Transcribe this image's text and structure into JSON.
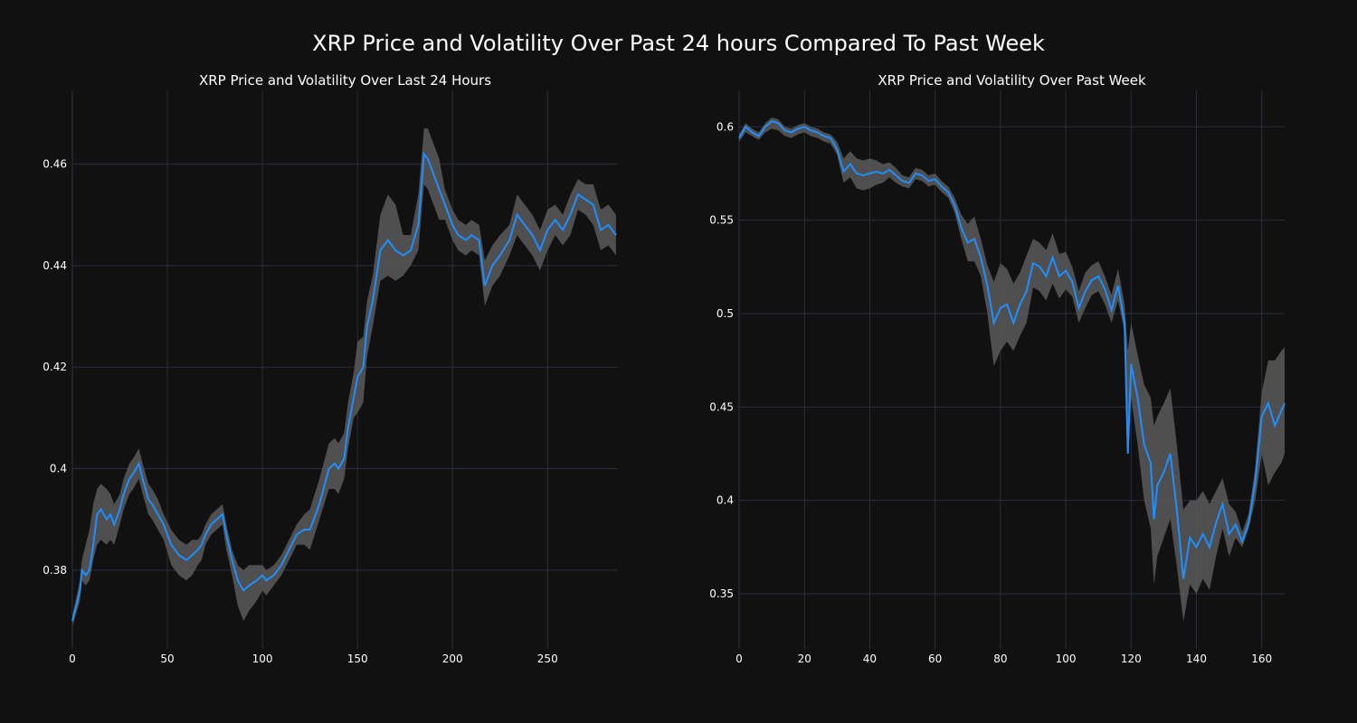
{
  "suptitle": "XRP Price and Volatility Over Past 24 hours Compared To Past Week",
  "colors": {
    "background": "#111111",
    "line": "#1f8fff",
    "band": "#5a5a5a",
    "grid": "#2a2f3d"
  },
  "chart_data": [
    {
      "type": "line",
      "title": "XRP Price and Volatility Over Last 24 Hours",
      "xlim": [
        0,
        287
      ],
      "ylim": [
        0.3645,
        0.4745
      ],
      "xticks": [
        0,
        50,
        100,
        150,
        200,
        250
      ],
      "yticks": [
        0.38,
        0.4,
        0.42,
        0.44,
        0.46
      ],
      "ytick_labels": [
        "0.38",
        "0.4",
        "0.42",
        "0.44",
        "0.46"
      ],
      "grid": true,
      "series": [
        {
          "x": [
            0,
            4,
            5,
            7,
            9,
            11,
            13,
            15,
            18,
            20,
            22,
            25,
            27,
            30,
            32,
            35,
            37,
            40,
            42,
            45,
            48,
            52,
            56,
            60,
            63,
            66,
            68,
            70,
            73,
            76,
            79,
            81,
            84,
            87,
            90,
            93,
            97,
            100,
            102,
            106,
            110,
            114,
            118,
            122,
            125,
            130,
            135,
            138,
            140,
            143,
            145,
            148,
            150,
            153,
            155,
            158,
            162,
            166,
            170,
            174,
            178,
            182,
            185,
            187,
            190,
            193,
            196,
            200,
            203,
            207,
            210,
            214,
            217,
            221,
            225,
            230,
            234,
            238,
            242,
            246,
            250,
            254,
            258,
            262,
            266,
            270,
            274,
            278,
            282,
            286
          ],
          "y": [
            0.37,
            0.376,
            0.38,
            0.379,
            0.38,
            0.385,
            0.391,
            0.392,
            0.39,
            0.391,
            0.389,
            0.392,
            0.395,
            0.398,
            0.399,
            0.401,
            0.398,
            0.394,
            0.393,
            0.391,
            0.389,
            0.385,
            0.383,
            0.382,
            0.383,
            0.384,
            0.385,
            0.387,
            0.389,
            0.39,
            0.391,
            0.387,
            0.382,
            0.378,
            0.376,
            0.377,
            0.378,
            0.379,
            0.378,
            0.379,
            0.381,
            0.384,
            0.387,
            0.388,
            0.388,
            0.393,
            0.4,
            0.401,
            0.4,
            0.402,
            0.408,
            0.414,
            0.418,
            0.42,
            0.428,
            0.433,
            0.443,
            0.445,
            0.443,
            0.442,
            0.443,
            0.448,
            0.462,
            0.461,
            0.458,
            0.455,
            0.452,
            0.448,
            0.446,
            0.445,
            0.446,
            0.445,
            0.436,
            0.44,
            0.442,
            0.445,
            0.45,
            0.448,
            0.446,
            0.443,
            0.447,
            0.449,
            0.447,
            0.45,
            0.454,
            0.453,
            0.452,
            0.447,
            0.448,
            0.446
          ],
          "upper": [
            0.371,
            0.378,
            0.382,
            0.385,
            0.388,
            0.393,
            0.396,
            0.397,
            0.396,
            0.395,
            0.393,
            0.395,
            0.398,
            0.401,
            0.402,
            0.404,
            0.401,
            0.397,
            0.396,
            0.394,
            0.391,
            0.388,
            0.386,
            0.385,
            0.386,
            0.386,
            0.387,
            0.389,
            0.391,
            0.392,
            0.393,
            0.389,
            0.384,
            0.381,
            0.38,
            0.381,
            0.381,
            0.381,
            0.38,
            0.381,
            0.383,
            0.386,
            0.389,
            0.391,
            0.392,
            0.398,
            0.405,
            0.406,
            0.405,
            0.407,
            0.413,
            0.419,
            0.425,
            0.426,
            0.433,
            0.438,
            0.45,
            0.454,
            0.452,
            0.446,
            0.446,
            0.454,
            0.467,
            0.467,
            0.464,
            0.461,
            0.455,
            0.451,
            0.449,
            0.448,
            0.449,
            0.448,
            0.441,
            0.444,
            0.446,
            0.448,
            0.454,
            0.452,
            0.45,
            0.447,
            0.451,
            0.452,
            0.45,
            0.454,
            0.457,
            0.456,
            0.456,
            0.451,
            0.452,
            0.45
          ],
          "lower": [
            0.369,
            0.374,
            0.378,
            0.377,
            0.378,
            0.382,
            0.385,
            0.386,
            0.385,
            0.386,
            0.385,
            0.389,
            0.392,
            0.395,
            0.396,
            0.398,
            0.395,
            0.391,
            0.39,
            0.388,
            0.386,
            0.381,
            0.379,
            0.378,
            0.379,
            0.381,
            0.382,
            0.385,
            0.387,
            0.388,
            0.389,
            0.384,
            0.379,
            0.373,
            0.37,
            0.372,
            0.374,
            0.376,
            0.375,
            0.377,
            0.379,
            0.382,
            0.385,
            0.385,
            0.384,
            0.39,
            0.396,
            0.396,
            0.395,
            0.398,
            0.404,
            0.41,
            0.411,
            0.413,
            0.422,
            0.428,
            0.437,
            0.438,
            0.437,
            0.438,
            0.44,
            0.443,
            0.456,
            0.455,
            0.452,
            0.449,
            0.449,
            0.445,
            0.443,
            0.442,
            0.443,
            0.442,
            0.432,
            0.436,
            0.438,
            0.442,
            0.446,
            0.444,
            0.442,
            0.439,
            0.443,
            0.446,
            0.444,
            0.446,
            0.451,
            0.45,
            0.448,
            0.443,
            0.444,
            0.442
          ]
        }
      ]
    },
    {
      "type": "line",
      "title": "XRP Price and Volatility Over Past Week",
      "xlim": [
        0,
        167
      ],
      "ylim": [
        0.3205,
        0.6195
      ],
      "xticks": [
        0,
        20,
        40,
        60,
        80,
        100,
        120,
        140,
        160
      ],
      "yticks": [
        0.35,
        0.4,
        0.45,
        0.5,
        0.55,
        0.6
      ],
      "ytick_labels": [
        "0.35",
        "0.4",
        "0.45",
        "0.5",
        "0.55",
        "0.6"
      ],
      "grid": true,
      "series": [
        {
          "x": [
            0,
            2,
            4,
            6,
            8,
            10,
            12,
            14,
            16,
            18,
            20,
            22,
            24,
            26,
            28,
            30,
            32,
            34,
            36,
            38,
            40,
            42,
            44,
            46,
            48,
            50,
            52,
            54,
            56,
            58,
            60,
            62,
            64,
            66,
            68,
            70,
            72,
            74,
            76,
            78,
            80,
            82,
            84,
            86,
            88,
            90,
            92,
            94,
            96,
            98,
            100,
            102,
            104,
            106,
            108,
            110,
            112,
            114,
            116,
            118,
            119,
            120,
            122,
            124,
            126,
            127,
            128,
            130,
            132,
            134,
            136,
            138,
            140,
            142,
            144,
            146,
            148,
            150,
            152,
            154,
            156,
            158,
            160,
            162,
            164,
            166,
            167
          ],
          "y": [
            0.594,
            0.6,
            0.597,
            0.595,
            0.6,
            0.603,
            0.602,
            0.598,
            0.597,
            0.599,
            0.6,
            0.598,
            0.597,
            0.595,
            0.594,
            0.588,
            0.576,
            0.58,
            0.575,
            0.574,
            0.575,
            0.576,
            0.575,
            0.577,
            0.574,
            0.571,
            0.57,
            0.575,
            0.574,
            0.571,
            0.572,
            0.568,
            0.565,
            0.558,
            0.546,
            0.538,
            0.54,
            0.53,
            0.515,
            0.495,
            0.503,
            0.505,
            0.495,
            0.505,
            0.512,
            0.527,
            0.525,
            0.52,
            0.53,
            0.52,
            0.523,
            0.517,
            0.503,
            0.512,
            0.518,
            0.52,
            0.513,
            0.502,
            0.515,
            0.495,
            0.425,
            0.473,
            0.455,
            0.43,
            0.42,
            0.39,
            0.408,
            0.415,
            0.425,
            0.395,
            0.358,
            0.38,
            0.375,
            0.382,
            0.375,
            0.388,
            0.398,
            0.382,
            0.387,
            0.378,
            0.388,
            0.41,
            0.445,
            0.452,
            0.44,
            0.448,
            0.452
          ],
          "upper": [
            0.596,
            0.602,
            0.599,
            0.597,
            0.602,
            0.605,
            0.604,
            0.6,
            0.599,
            0.601,
            0.602,
            0.6,
            0.599,
            0.597,
            0.596,
            0.592,
            0.583,
            0.587,
            0.583,
            0.582,
            0.583,
            0.582,
            0.58,
            0.581,
            0.578,
            0.574,
            0.573,
            0.578,
            0.577,
            0.574,
            0.575,
            0.571,
            0.568,
            0.562,
            0.553,
            0.548,
            0.552,
            0.54,
            0.526,
            0.517,
            0.527,
            0.524,
            0.516,
            0.522,
            0.531,
            0.54,
            0.538,
            0.534,
            0.543,
            0.532,
            0.533,
            0.525,
            0.512,
            0.522,
            0.526,
            0.528,
            0.52,
            0.51,
            0.524,
            0.505,
            0.48,
            0.495,
            0.478,
            0.462,
            0.455,
            0.44,
            0.445,
            0.452,
            0.46,
            0.43,
            0.395,
            0.4,
            0.4,
            0.405,
            0.398,
            0.405,
            0.412,
            0.398,
            0.394,
            0.383,
            0.393,
            0.418,
            0.458,
            0.475,
            0.475,
            0.48,
            0.482
          ],
          "lower": [
            0.592,
            0.597,
            0.595,
            0.593,
            0.597,
            0.599,
            0.598,
            0.595,
            0.594,
            0.596,
            0.597,
            0.595,
            0.594,
            0.592,
            0.591,
            0.585,
            0.57,
            0.573,
            0.567,
            0.566,
            0.567,
            0.569,
            0.57,
            0.573,
            0.57,
            0.568,
            0.567,
            0.572,
            0.571,
            0.568,
            0.569,
            0.565,
            0.562,
            0.554,
            0.54,
            0.528,
            0.528,
            0.52,
            0.5,
            0.472,
            0.48,
            0.485,
            0.48,
            0.488,
            0.495,
            0.514,
            0.512,
            0.507,
            0.516,
            0.508,
            0.513,
            0.509,
            0.495,
            0.503,
            0.51,
            0.512,
            0.505,
            0.495,
            0.507,
            0.49,
            0.425,
            0.455,
            0.43,
            0.4,
            0.385,
            0.355,
            0.37,
            0.38,
            0.39,
            0.365,
            0.335,
            0.355,
            0.35,
            0.358,
            0.352,
            0.37,
            0.385,
            0.37,
            0.38,
            0.375,
            0.385,
            0.4,
            0.425,
            0.408,
            0.415,
            0.42,
            0.425
          ]
        }
      ]
    }
  ]
}
